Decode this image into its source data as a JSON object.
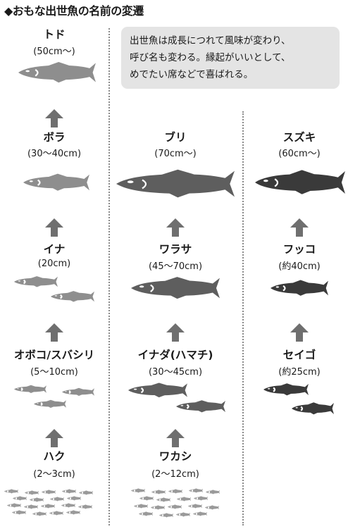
{
  "title": "◆おもな出世魚の名前の変遷",
  "note": {
    "line1": "出世魚は成長につれて風味が変わり、",
    "line2": "呼び名も変わる。縁起がいいとして、",
    "line3": "めでたい席などで喜ばれる。"
  },
  "columns": [
    {
      "fish_color": "#8e8e8e",
      "stages": [
        {
          "name": "トド",
          "size": "(50cm〜)"
        },
        {
          "name": "ボラ",
          "size": "(30〜40cm)"
        },
        {
          "name": "イナ",
          "size": "(20cm)"
        },
        {
          "name": "オボコ/スバシリ",
          "size": "(5〜10cm)"
        },
        {
          "name": "ハク",
          "size": "(2〜3cm)"
        }
      ]
    },
    {
      "fish_color": "#5e5e5e",
      "stages": [
        {
          "name": "ブリ",
          "size": "(70cm〜)"
        },
        {
          "name": "ワラサ",
          "size": "(45〜70cm)"
        },
        {
          "name": "イナダ(ハマチ)",
          "size": "(30〜45cm)"
        },
        {
          "name": "ワカシ",
          "size": "(2〜12cm)"
        }
      ]
    },
    {
      "fish_color": "#3a3a3a",
      "stages": [
        {
          "name": "スズキ",
          "size": "(60cm〜)"
        },
        {
          "name": "フッコ",
          "size": "(約40cm)"
        },
        {
          "name": "セイゴ",
          "size": "(約25cm)"
        }
      ]
    }
  ],
  "icons": {
    "fish": "fish-icon",
    "arrow": "up-arrow-icon"
  }
}
